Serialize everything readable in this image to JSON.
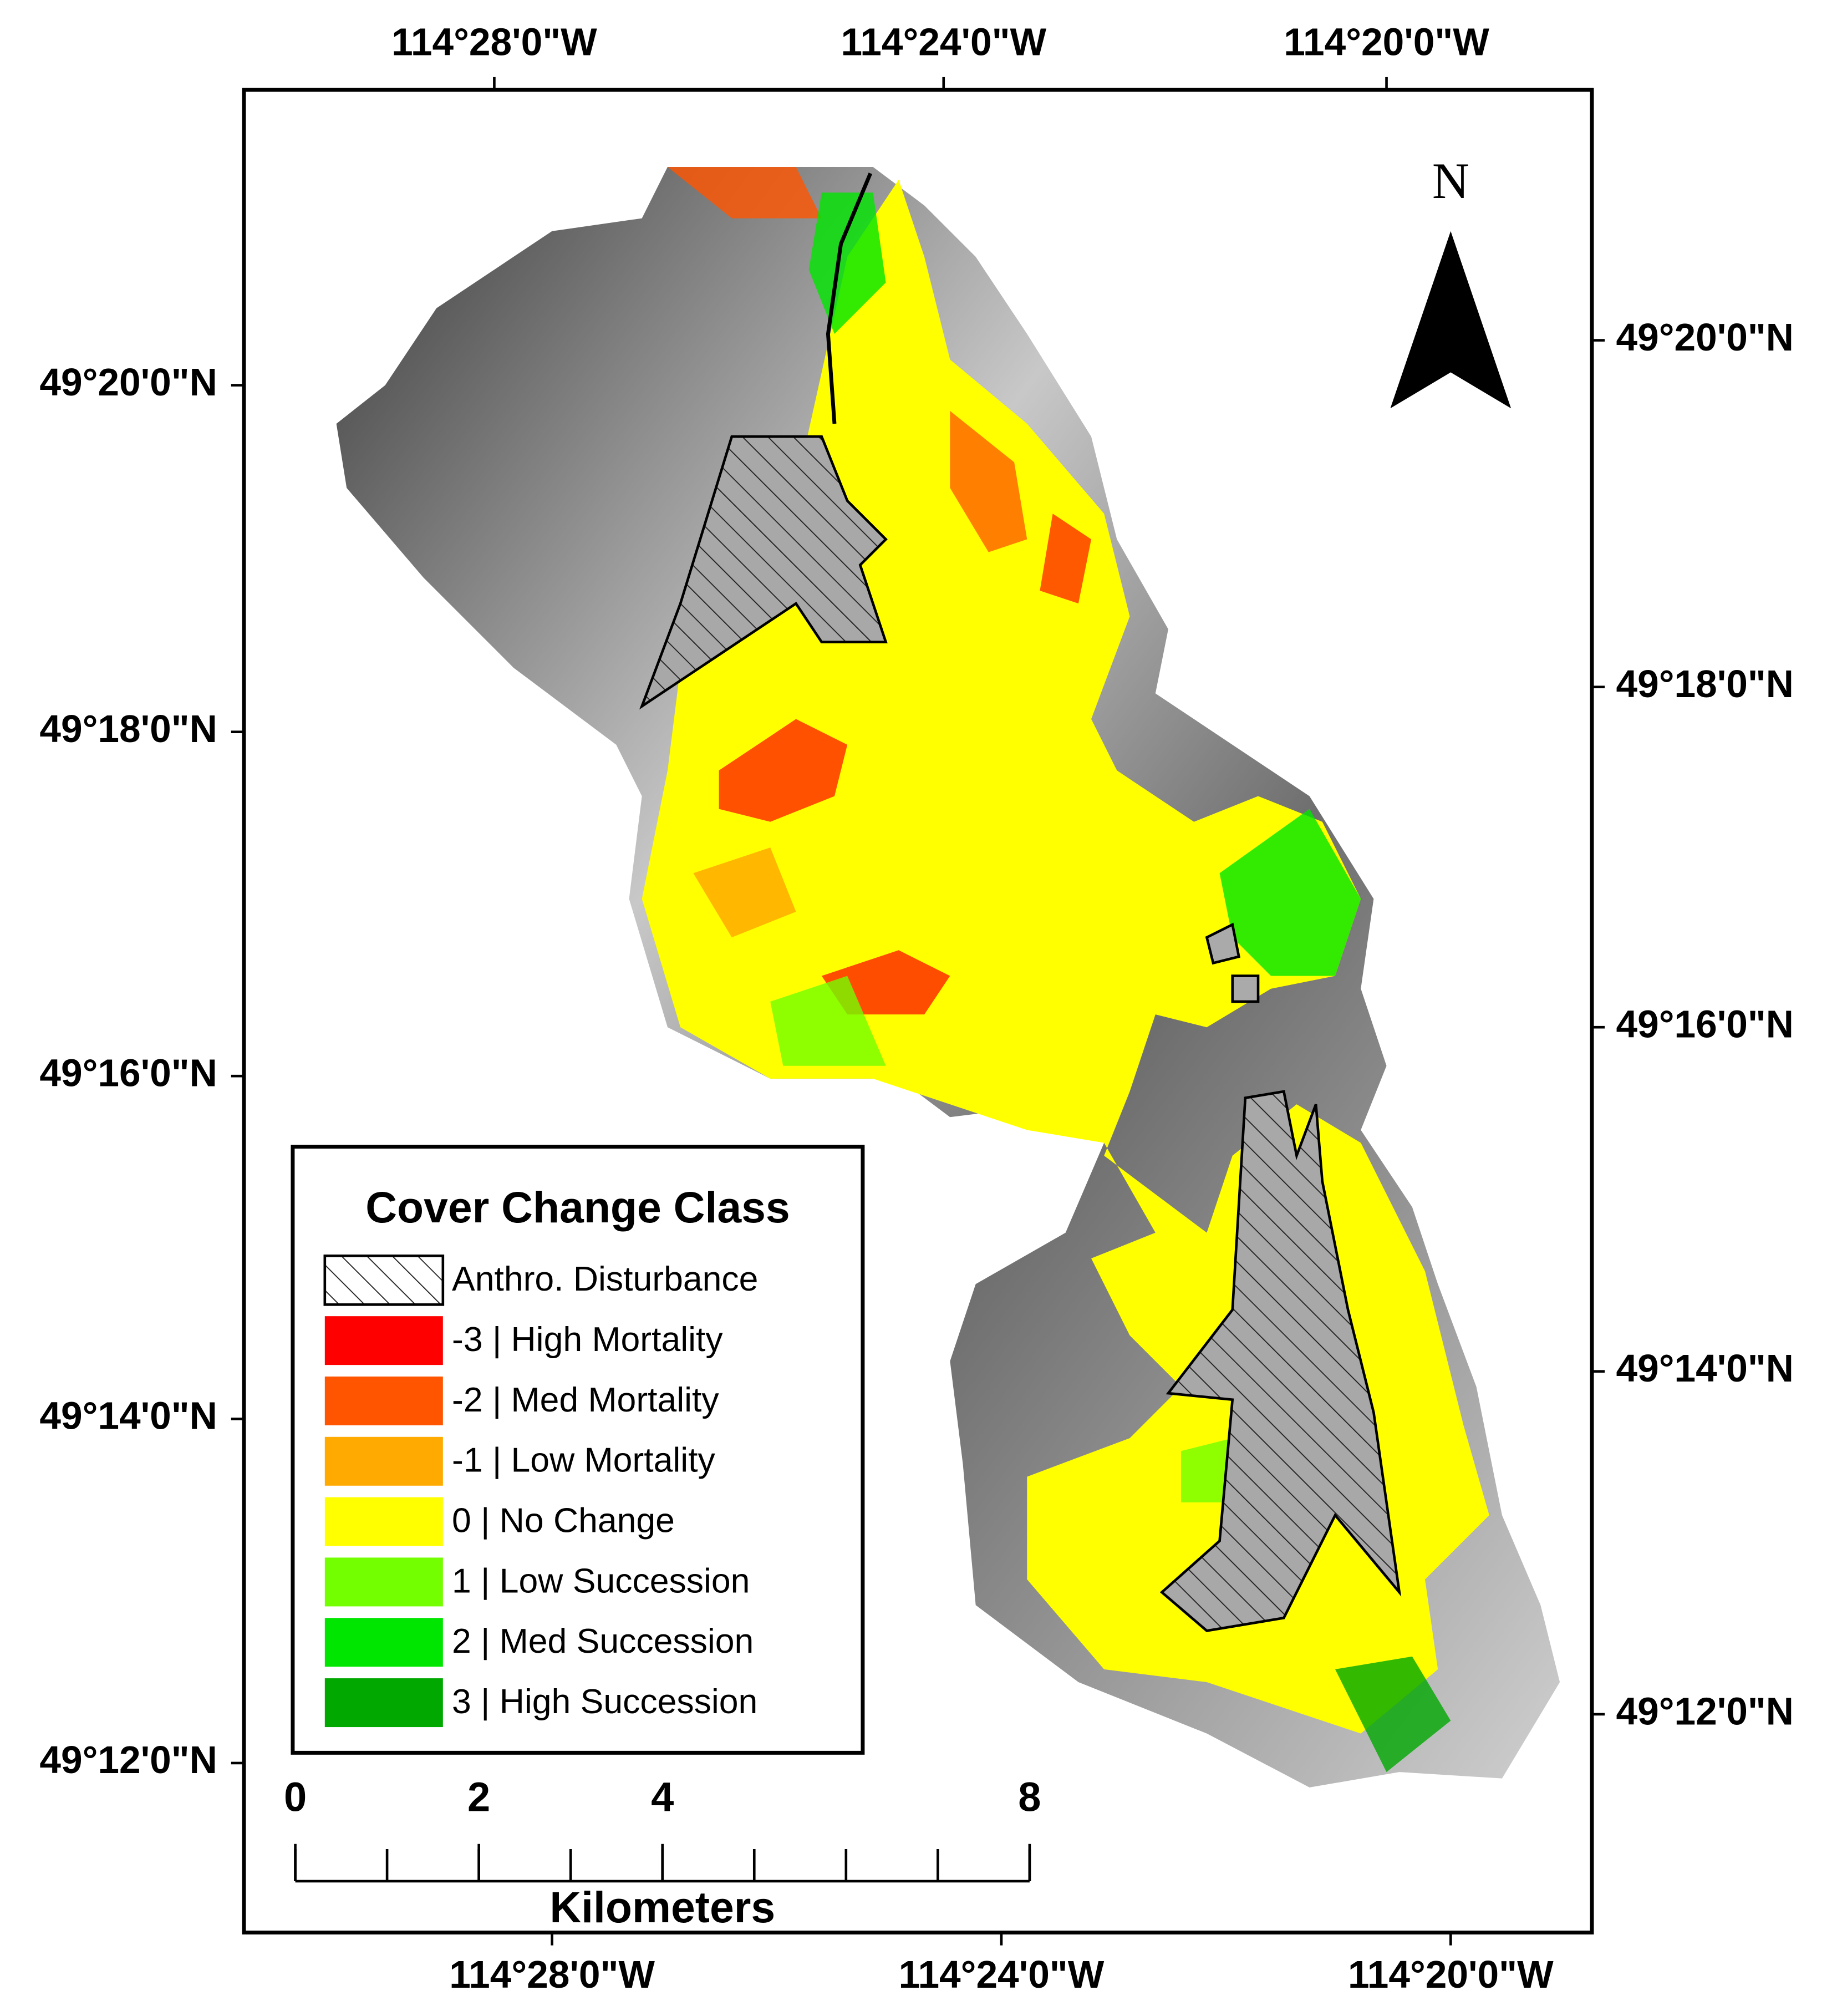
{
  "map": {
    "top_longitudes": [
      "114°28'0\"W",
      "114°24'0\"W",
      "114°20'0\"W"
    ],
    "bottom_longitudes": [
      "114°28'0\"W",
      "114°24'0\"W",
      "114°20'0\"W"
    ],
    "left_latitudes": [
      "49°20'0\"N",
      "49°18'0\"N",
      "49°16'0\"N",
      "49°14'0\"N",
      "49°12'0\"N"
    ],
    "right_latitudes": [
      "49°20'0\"N",
      "49°18'0\"N",
      "49°16'0\"N",
      "49°14'0\"N",
      "49°12'0\"N"
    ],
    "north_label": "N",
    "legend": {
      "title": "Cover Change Class",
      "items": [
        {
          "label": "Anthro. Disturbance",
          "color": "#ffffff",
          "hatch": true
        },
        {
          "label": "-3 | High Mortality",
          "color": "#ff0000"
        },
        {
          "label": "-2 | Med Mortality",
          "color": "#ff5500"
        },
        {
          "label": "-1 | Low Mortality",
          "color": "#ffaa00"
        },
        {
          "label": "0 | No Change",
          "color": "#ffff00"
        },
        {
          "label": "1 | Low Succession",
          "color": "#73ff00"
        },
        {
          "label": "2 | Med Succession",
          "color": "#00e600"
        },
        {
          "label": "3 | High Succession",
          "color": "#00a800"
        }
      ]
    },
    "scale_bar": {
      "ticks": [
        0,
        2,
        4,
        8
      ],
      "unit": "Kilometers"
    }
  }
}
